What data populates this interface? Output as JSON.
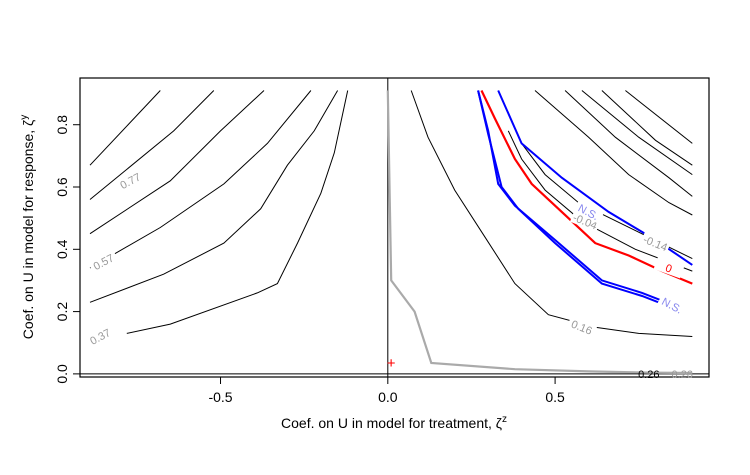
{
  "chart_data": {
    "type": "line",
    "title": "",
    "xlabel": "Coef. on U in model for treatment, ζ",
    "xlabel_sup": "z",
    "ylabel": "Coef. on U in model for response, ζ",
    "ylabel_sup": "y",
    "xlim": [
      -0.92,
      0.96
    ],
    "ylim": [
      -0.01,
      0.95
    ],
    "x_ticks": [
      {
        "value": -0.5,
        "label": "-0.5"
      },
      {
        "value": 0.0,
        "label": "0.0"
      },
      {
        "value": 0.5,
        "label": "0.5"
      }
    ],
    "y_ticks": [
      {
        "value": 0.0,
        "label": "0.0"
      },
      {
        "value": 0.2,
        "label": "0.2"
      },
      {
        "value": 0.4,
        "label": "0.4"
      },
      {
        "value": 0.6,
        "label": "0.6"
      },
      {
        "value": 0.8,
        "label": "0.8"
      }
    ],
    "reference_lines": {
      "vertical_x": 0.0,
      "horizontal_y": 0.0
    },
    "marker": {
      "x": 0.01,
      "y": 0.035,
      "symbol": "+",
      "color": "#ff0000"
    },
    "colors": {
      "contour": "#000000",
      "contour_label": "#999999",
      "zero_contour": "#ff0000",
      "bound_contour": "#0000ff",
      "bound_label": "#8888ee",
      "grey_contour": "#aaaaaa"
    },
    "contours": [
      {
        "group": "left",
        "points": [
          [
            -0.89,
            0.67
          ],
          [
            -0.68,
            0.91
          ]
        ]
      },
      {
        "group": "left",
        "points": [
          [
            -0.89,
            0.56
          ],
          [
            -0.64,
            0.78
          ],
          [
            -0.52,
            0.91
          ]
        ]
      },
      {
        "group": "left",
        "label": "0.77",
        "label_at": [
          -0.77,
          0.62
        ],
        "points": [
          [
            -0.89,
            0.45
          ],
          [
            -0.65,
            0.62
          ],
          [
            -0.5,
            0.78
          ],
          [
            -0.37,
            0.91
          ]
        ]
      },
      {
        "group": "left",
        "points": [
          [
            -0.89,
            0.34
          ],
          [
            -0.68,
            0.47
          ],
          [
            -0.49,
            0.61
          ],
          [
            -0.36,
            0.74
          ],
          [
            -0.23,
            0.91
          ]
        ]
      },
      {
        "group": "left",
        "label": "0.57",
        "label_at": [
          -0.85,
          0.36
        ],
        "points": [
          [
            -0.89,
            0.23
          ],
          [
            -0.67,
            0.32
          ],
          [
            -0.49,
            0.42
          ],
          [
            -0.38,
            0.53
          ],
          [
            -0.3,
            0.67
          ],
          [
            -0.22,
            0.78
          ],
          [
            -0.15,
            0.91
          ]
        ]
      },
      {
        "group": "left",
        "label": "0.37",
        "label_at": [
          -0.86,
          0.12
        ],
        "points": [
          [
            -0.78,
            0.13
          ],
          [
            -0.65,
            0.16
          ],
          [
            -0.39,
            0.26
          ],
          [
            -0.33,
            0.29
          ],
          [
            -0.27,
            0.42
          ],
          [
            -0.2,
            0.58
          ],
          [
            -0.16,
            0.71
          ],
          [
            -0.12,
            0.91
          ]
        ]
      },
      {
        "group": "right",
        "points": [
          [
            0.44,
            0.91
          ],
          [
            0.6,
            0.76
          ],
          [
            0.72,
            0.64
          ],
          [
            0.84,
            0.55
          ],
          [
            0.91,
            0.51
          ]
        ]
      },
      {
        "group": "right",
        "points": [
          [
            0.53,
            0.91
          ],
          [
            0.68,
            0.76
          ],
          [
            0.84,
            0.63
          ],
          [
            0.91,
            0.57
          ]
        ]
      },
      {
        "group": "right",
        "points": [
          [
            0.58,
            0.91
          ],
          [
            0.75,
            0.76
          ],
          [
            0.91,
            0.64
          ]
        ]
      },
      {
        "group": "right",
        "points": [
          [
            0.64,
            0.91
          ],
          [
            0.8,
            0.75
          ],
          [
            0.91,
            0.67
          ]
        ]
      },
      {
        "group": "right",
        "points": [
          [
            0.71,
            0.91
          ],
          [
            0.91,
            0.74
          ]
        ]
      },
      {
        "group": "right",
        "label": "-0.14",
        "label_at": [
          0.8,
          0.42
        ],
        "points": [
          [
            0.4,
            0.74
          ],
          [
            0.47,
            0.64
          ],
          [
            0.57,
            0.55
          ],
          [
            0.74,
            0.46
          ],
          [
            0.91,
            0.37
          ]
        ]
      },
      {
        "group": "right",
        "label": "-0.04",
        "label_at": [
          0.59,
          0.49
        ],
        "points": [
          [
            0.36,
            0.78
          ],
          [
            0.4,
            0.69
          ],
          [
            0.47,
            0.59
          ],
          [
            0.58,
            0.49
          ],
          [
            0.74,
            0.4
          ],
          [
            0.91,
            0.33
          ]
        ]
      },
      {
        "group": "right",
        "label": "0.16",
        "label_at": [
          0.58,
          0.15
        ],
        "points": [
          [
            0.07,
            0.91
          ],
          [
            0.12,
            0.76
          ],
          [
            0.2,
            0.59
          ],
          [
            0.29,
            0.44
          ],
          [
            0.38,
            0.29
          ],
          [
            0.48,
            0.19
          ],
          [
            0.62,
            0.15
          ],
          [
            0.75,
            0.13
          ],
          [
            0.91,
            0.12
          ]
        ]
      }
    ],
    "zero_contour": {
      "label": "0",
      "label_at": [
        0.84,
        0.34
      ],
      "points": [
        [
          0.28,
          0.91
        ],
        [
          0.32,
          0.82
        ],
        [
          0.38,
          0.69
        ],
        [
          0.43,
          0.61
        ],
        [
          0.52,
          0.52
        ],
        [
          0.62,
          0.42
        ],
        [
          0.72,
          0.38
        ],
        [
          0.82,
          0.33
        ],
        [
          0.91,
          0.29
        ]
      ]
    },
    "bound_contours": [
      {
        "label": "N.S.",
        "label_at": [
          0.6,
          0.52
        ],
        "points": [
          [
            0.33,
            0.91
          ],
          [
            0.4,
            0.74
          ],
          [
            0.52,
            0.63
          ],
          [
            0.66,
            0.52
          ],
          [
            0.8,
            0.43
          ],
          [
            0.91,
            0.35
          ]
        ]
      },
      {
        "label": "N.S.",
        "label_at": [
          0.85,
          0.22
        ],
        "points": [
          [
            0.27,
            0.91
          ],
          [
            0.3,
            0.78
          ],
          [
            0.33,
            0.61
          ],
          [
            0.38,
            0.54
          ],
          [
            0.5,
            0.43
          ],
          [
            0.64,
            0.3
          ],
          [
            0.76,
            0.26
          ],
          [
            0.88,
            0.21
          ]
        ]
      },
      {
        "label": "",
        "points": [
          [
            0.27,
            0.91
          ],
          [
            0.3,
            0.77
          ],
          [
            0.34,
            0.6
          ],
          [
            0.39,
            0.53
          ],
          [
            0.5,
            0.42
          ],
          [
            0.64,
            0.29
          ],
          [
            0.76,
            0.25
          ],
          [
            0.88,
            0.2
          ]
        ]
      }
    ],
    "grey_contour": {
      "points": [
        [
          0.0,
          0.91
        ],
        [
          0.01,
          0.3
        ],
        [
          0.08,
          0.2
        ],
        [
          0.13,
          0.035
        ],
        [
          0.38,
          0.015
        ],
        [
          0.6,
          0.008
        ],
        [
          0.78,
          0.004
        ],
        [
          0.91,
          0.003
        ]
      ]
    },
    "text_labels": [
      {
        "text": "0.26",
        "at": [
          0.78,
          0.0
        ],
        "color": "#000000"
      },
      {
        "text": "0.26",
        "at": [
          0.88,
          0.0
        ],
        "color": "#999999"
      }
    ]
  }
}
